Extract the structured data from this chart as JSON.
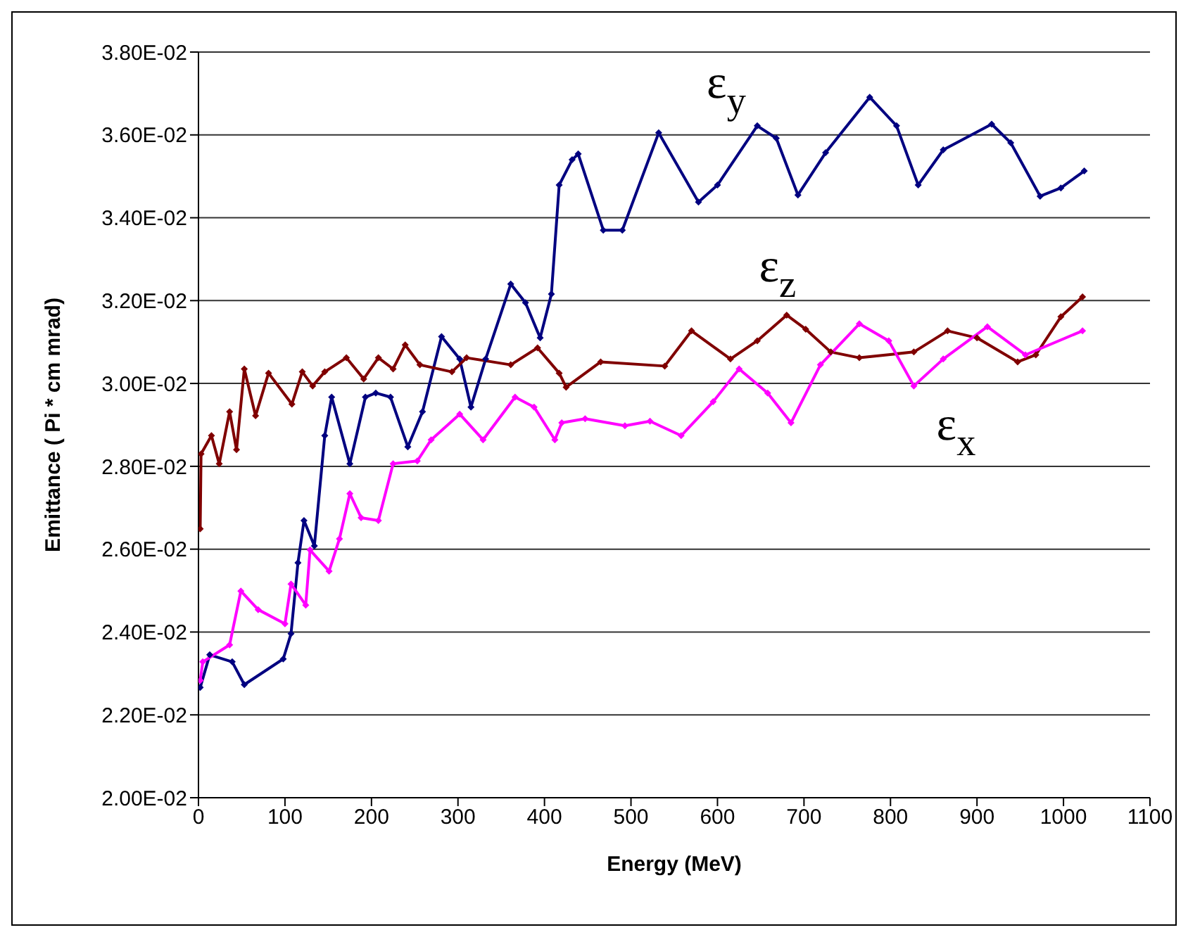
{
  "chart_data": {
    "type": "line",
    "xlabel": "Energy (MeV)",
    "ylabel": "Emittance ( Pi * cm mrad)",
    "xlim": [
      0,
      1100
    ],
    "xticks": [
      0,
      100,
      200,
      300,
      400,
      500,
      600,
      700,
      800,
      900,
      1000,
      1100
    ],
    "ylim": [
      0.02,
      0.038
    ],
    "yticks": [
      {
        "value": 0.02,
        "label": "2.00E-02"
      },
      {
        "value": 0.022,
        "label": "2.20E-02"
      },
      {
        "value": 0.024,
        "label": "2.40E-02"
      },
      {
        "value": 0.026,
        "label": "2.60E-02"
      },
      {
        "value": 0.028,
        "label": "2.80E-02"
      },
      {
        "value": 0.03,
        "label": "3.00E-02"
      },
      {
        "value": 0.032,
        "label": "3.20E-02"
      },
      {
        "value": 0.034,
        "label": "3.40E-02"
      },
      {
        "value": 0.036,
        "label": "3.60E-02"
      },
      {
        "value": 0.038,
        "label": "3.80E-02"
      }
    ],
    "grid": "y",
    "legend": false,
    "marker": "diamond",
    "series": [
      {
        "name": "ε$_{y}$",
        "color": "#000080",
        "x": [
          2,
          13,
          39,
          53,
          98,
          107,
          115,
          122,
          134,
          146,
          154,
          175,
          193,
          205,
          222,
          242,
          259,
          281,
          302,
          315,
          332,
          361,
          378,
          395,
          408,
          417,
          432,
          439,
          468,
          490,
          532,
          578,
          600,
          646,
          668,
          693,
          725,
          776,
          807,
          832,
          861,
          917,
          939,
          973,
          997,
          1024
        ],
        "values": [
          0.02266,
          0.02345,
          0.02328,
          0.02273,
          0.02335,
          0.02396,
          0.02567,
          0.02669,
          0.02608,
          0.02874,
          0.02967,
          0.02806,
          0.02967,
          0.02977,
          0.02967,
          0.02847,
          0.02932,
          0.03113,
          0.03059,
          0.02943,
          0.03059,
          0.0324,
          0.03195,
          0.0311,
          0.03216,
          0.03479,
          0.0354,
          0.03554,
          0.0337,
          0.0337,
          0.03605,
          0.03438,
          0.03479,
          0.03622,
          0.03592,
          0.03455,
          0.03557,
          0.03691,
          0.03622,
          0.03479,
          0.03564,
          0.03626,
          0.03581,
          0.03452,
          0.03472,
          0.03513
        ]
      },
      {
        "name": "ε$_{z}$",
        "color": "#800000",
        "x": [
          2,
          3,
          15,
          24,
          36,
          44,
          53,
          66,
          81,
          108,
          120,
          132,
          146,
          171,
          191,
          208,
          225,
          239,
          256,
          293,
          310,
          361,
          392,
          417,
          425,
          465,
          539,
          570,
          615,
          646,
          680,
          702,
          731,
          764,
          827,
          866,
          900,
          947,
          968,
          997,
          1022
        ],
        "values": [
          0.02649,
          0.0283,
          0.02874,
          0.02806,
          0.02932,
          0.0284,
          0.03035,
          0.02922,
          0.03025,
          0.0295,
          0.03028,
          0.02994,
          0.03028,
          0.03062,
          0.03011,
          0.03062,
          0.03035,
          0.03093,
          0.03045,
          0.03028,
          0.03062,
          0.03045,
          0.03086,
          0.03025,
          0.02991,
          0.03052,
          0.03042,
          0.03127,
          0.03059,
          0.03103,
          0.03165,
          0.03131,
          0.03076,
          0.03062,
          0.03076,
          0.03127,
          0.0311,
          0.03052,
          0.03069,
          0.03161,
          0.03209
        ]
      },
      {
        "name": "ε$_{x}$",
        "color": "#ff00ff",
        "x": [
          2,
          5,
          36,
          49,
          69,
          100,
          107,
          124,
          129,
          151,
          163,
          175,
          188,
          208,
          225,
          253,
          269,
          302,
          329,
          366,
          388,
          412,
          420,
          447,
          493,
          522,
          558,
          595,
          625,
          658,
          685,
          719,
          764,
          798,
          827,
          861,
          912,
          956,
          1022
        ],
        "values": [
          0.02283,
          0.02328,
          0.02369,
          0.02499,
          0.02454,
          0.0242,
          0.02516,
          0.02465,
          0.02598,
          0.02547,
          0.02625,
          0.02734,
          0.02676,
          0.02669,
          0.02806,
          0.02813,
          0.02864,
          0.02926,
          0.02864,
          0.02967,
          0.02943,
          0.02864,
          0.02905,
          0.02915,
          0.02898,
          0.02909,
          0.02874,
          0.02956,
          0.03035,
          0.02977,
          0.02905,
          0.03045,
          0.03144,
          0.03103,
          0.02994,
          0.03059,
          0.03137,
          0.03069,
          0.03127
        ]
      }
    ]
  }
}
